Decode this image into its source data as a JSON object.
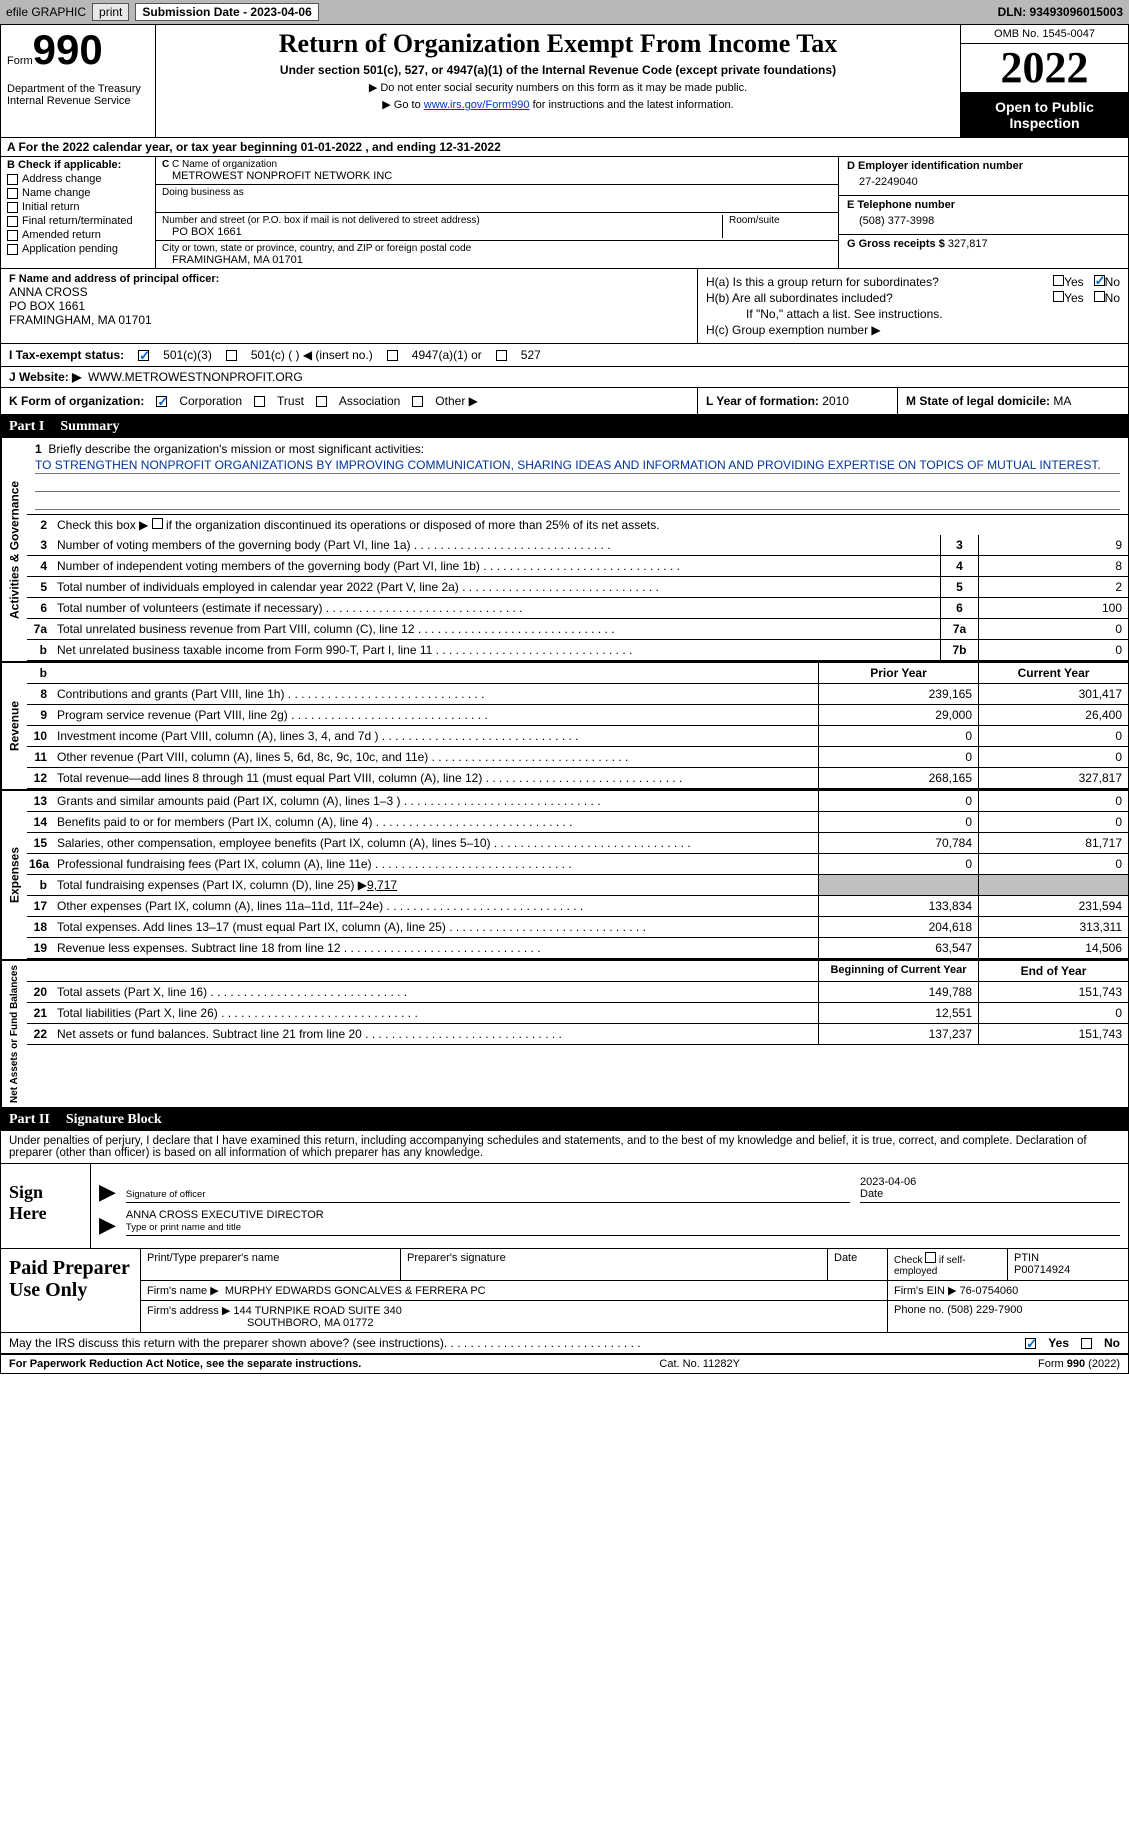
{
  "topbar": {
    "efile": "efile GRAPHIC",
    "print": "print",
    "submission_label": "Submission Date - 2023-04-06",
    "dln": "DLN: 93493096015003"
  },
  "header": {
    "form_label": "Form",
    "form_num": "990",
    "dept": "Department of the Treasury\nInternal Revenue Service",
    "title": "Return of Organization Exempt From Income Tax",
    "subtitle": "Under section 501(c), 527, or 4947(a)(1) of the Internal Revenue Code (except private foundations)",
    "instr1": "▶ Do not enter social security numbers on this form as it may be made public.",
    "instr2_pre": "▶ Go to ",
    "instr2_link": "www.irs.gov/Form990",
    "instr2_post": " for instructions and the latest information.",
    "omb": "OMB No. 1545-0047",
    "year": "2022",
    "inspection": "Open to Public Inspection"
  },
  "row_a": {
    "text": "A For the 2022 calendar year, or tax year beginning 01-01-2022    , and ending 12-31-2022"
  },
  "col_b": {
    "label": "B Check if applicable:",
    "items": [
      "Address change",
      "Name change",
      "Initial return",
      "Final return/terminated",
      "Amended return",
      "Application pending"
    ]
  },
  "col_c": {
    "name_label": "C Name of organization",
    "name": "METROWEST NONPROFIT NETWORK INC",
    "dba_label": "Doing business as",
    "dba": "",
    "street_label": "Number and street (or P.O. box if mail is not delivered to street address)",
    "street": "PO BOX 1661",
    "room_label": "Room/suite",
    "city_label": "City or town, state or province, country, and ZIP or foreign postal code",
    "city": "FRAMINGHAM, MA  01701"
  },
  "col_d": {
    "ein_label": "D Employer identification number",
    "ein": "27-2249040",
    "phone_label": "E Telephone number",
    "phone": "(508) 377-3998",
    "gross_label": "G Gross receipts $",
    "gross": "327,817"
  },
  "row_f": {
    "label": "F  Name and address of principal officer:",
    "name": "ANNA CROSS",
    "addr1": "PO BOX 1661",
    "addr2": "FRAMINGHAM, MA  01701"
  },
  "row_h": {
    "a_label": "H(a)  Is this a group return for subordinates?",
    "b_label": "H(b)  Are all subordinates included?",
    "b_note": "If \"No,\" attach a list. See instructions.",
    "c_label": "H(c)  Group exemption number ▶",
    "yes": "Yes",
    "no": "No"
  },
  "row_i": {
    "label": "I    Tax-exempt status:",
    "opt1": "501(c)(3)",
    "opt2": "501(c) (  ) ◀ (insert no.)",
    "opt3": "4947(a)(1) or",
    "opt4": "527"
  },
  "row_j": {
    "label": "J   Website: ▶",
    "val": "WWW.METROWESTNONPROFIT.ORG"
  },
  "row_k": {
    "label": "K Form of organization:",
    "opts": [
      "Corporation",
      "Trust",
      "Association",
      "Other ▶"
    ],
    "l_label": "L Year of formation:",
    "l_val": "2010",
    "m_label": "M State of legal domicile:",
    "m_val": "MA"
  },
  "part1": {
    "header_num": "Part I",
    "header_title": "Summary"
  },
  "mission": {
    "num": "1",
    "label": "Briefly describe the organization's mission or most significant activities:",
    "text": "TO STRENGTHEN NONPROFIT ORGANIZATIONS BY IMPROVING COMMUNICATION, SHARING IDEAS AND INFORMATION AND PROVIDING EXPERTISE ON TOPICS OF MUTUAL INTEREST."
  },
  "line2": {
    "num": "2",
    "text": "Check this box ▶ ☐ if the organization discontinued its operations or disposed of more than 25% of its net assets."
  },
  "lines_gov": [
    {
      "num": "3",
      "desc": "Number of voting members of the governing body (Part VI, line 1a)",
      "box": "3",
      "val": "9"
    },
    {
      "num": "4",
      "desc": "Number of independent voting members of the governing body (Part VI, line 1b)",
      "box": "4",
      "val": "8"
    },
    {
      "num": "5",
      "desc": "Total number of individuals employed in calendar year 2022 (Part V, line 2a)",
      "box": "5",
      "val": "2"
    },
    {
      "num": "6",
      "desc": "Total number of volunteers (estimate if necessary)",
      "box": "6",
      "val": "100"
    },
    {
      "num": "7a",
      "desc": "Total unrelated business revenue from Part VIII, column (C), line 12",
      "box": "7a",
      "val": "0"
    },
    {
      "num": "b",
      "desc": "Net unrelated business taxable income from Form 990-T, Part I, line 11",
      "box": "7b",
      "val": "0"
    }
  ],
  "col_headers": {
    "prior": "Prior Year",
    "current": "Current Year"
  },
  "lines_rev": [
    {
      "num": "8",
      "desc": "Contributions and grants (Part VIII, line 1h)",
      "prior": "239,165",
      "current": "301,417"
    },
    {
      "num": "9",
      "desc": "Program service revenue (Part VIII, line 2g)",
      "prior": "29,000",
      "current": "26,400"
    },
    {
      "num": "10",
      "desc": "Investment income (Part VIII, column (A), lines 3, 4, and 7d )",
      "prior": "0",
      "current": "0"
    },
    {
      "num": "11",
      "desc": "Other revenue (Part VIII, column (A), lines 5, 6d, 8c, 9c, 10c, and 11e)",
      "prior": "0",
      "current": "0"
    },
    {
      "num": "12",
      "desc": "Total revenue—add lines 8 through 11 (must equal Part VIII, column (A), line 12)",
      "prior": "268,165",
      "current": "327,817"
    }
  ],
  "lines_exp": [
    {
      "num": "13",
      "desc": "Grants and similar amounts paid (Part IX, column (A), lines 1–3 )",
      "prior": "0",
      "current": "0"
    },
    {
      "num": "14",
      "desc": "Benefits paid to or for members (Part IX, column (A), line 4)",
      "prior": "0",
      "current": "0"
    },
    {
      "num": "15",
      "desc": "Salaries, other compensation, employee benefits (Part IX, column (A), lines 5–10)",
      "prior": "70,784",
      "current": "81,717"
    },
    {
      "num": "16a",
      "desc": "Professional fundraising fees (Part IX, column (A), line 11e)",
      "prior": "0",
      "current": "0"
    }
  ],
  "line16b": {
    "num": "b",
    "desc": "Total fundraising expenses (Part IX, column (D), line 25) ▶",
    "val": "9,717"
  },
  "lines_exp2": [
    {
      "num": "17",
      "desc": "Other expenses (Part IX, column (A), lines 11a–11d, 11f–24e)",
      "prior": "133,834",
      "current": "231,594"
    },
    {
      "num": "18",
      "desc": "Total expenses. Add lines 13–17 (must equal Part IX, column (A), line 25)",
      "prior": "204,618",
      "current": "313,311"
    },
    {
      "num": "19",
      "desc": "Revenue less expenses. Subtract line 18 from line 12",
      "prior": "63,547",
      "current": "14,506"
    }
  ],
  "col_headers2": {
    "begin": "Beginning of Current Year",
    "end": "End of Year"
  },
  "lines_net": [
    {
      "num": "20",
      "desc": "Total assets (Part X, line 16)",
      "prior": "149,788",
      "current": "151,743"
    },
    {
      "num": "21",
      "desc": "Total liabilities (Part X, line 26)",
      "prior": "12,551",
      "current": "0"
    },
    {
      "num": "22",
      "desc": "Net assets or fund balances. Subtract line 21 from line 20",
      "prior": "137,237",
      "current": "151,743"
    }
  ],
  "vtabs": {
    "gov": "Activities & Governance",
    "rev": "Revenue",
    "exp": "Expenses",
    "net": "Net Assets or Fund Balances"
  },
  "part2": {
    "header_num": "Part II",
    "header_title": "Signature Block",
    "intro": "Under penalties of perjury, I declare that I have examined this return, including accompanying schedules and statements, and to the best of my knowledge and belief, it is true, correct, and complete. Declaration of preparer (other than officer) is based on all information of which preparer has any knowledge."
  },
  "sign": {
    "label": "Sign Here",
    "sig_label": "Signature of officer",
    "date_val": "2023-04-06",
    "date_label": "Date",
    "name_val": "ANNA CROSS  EXECUTIVE DIRECTOR",
    "name_label": "Type or print name and title"
  },
  "paid": {
    "label": "Paid Preparer Use Only",
    "h1": "Print/Type preparer's name",
    "h2": "Preparer's signature",
    "h3": "Date",
    "h4_pre": "Check ☐ if self-employed",
    "h5": "PTIN",
    "ptin": "P00714924",
    "firm_label": "Firm's name    ▶",
    "firm": "MURPHY EDWARDS GONCALVES & FERRERA PC",
    "ein_label": "Firm's EIN ▶",
    "ein": "76-0754060",
    "addr_label": "Firm's address ▶",
    "addr1": "144 TURNPIKE ROAD SUITE 340",
    "addr2": "SOUTHBORO, MA  01772",
    "phone_label": "Phone no.",
    "phone": "(508) 229-7900"
  },
  "discuss": {
    "text": "May the IRS discuss this return with the preparer shown above? (see instructions)",
    "yes": "Yes",
    "no": "No"
  },
  "footer": {
    "left": "For Paperwork Reduction Act Notice, see the separate instructions.",
    "mid": "Cat. No. 11282Y",
    "right": "Form 990 (2022)"
  }
}
